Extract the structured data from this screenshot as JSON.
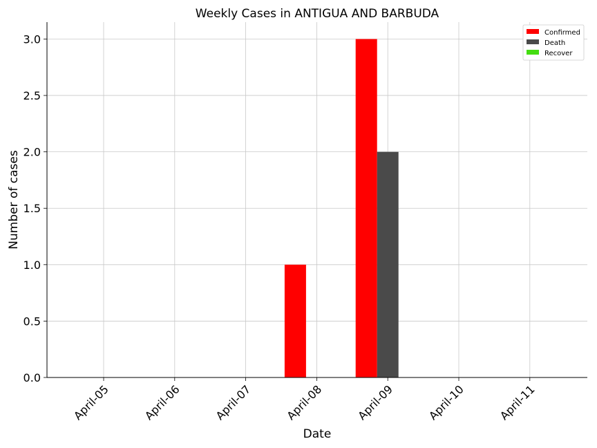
{
  "chart_data": {
    "type": "bar",
    "title": "Weekly Cases in ANTIGUA AND BARBUDA",
    "xlabel": "Date",
    "ylabel": "Number of cases",
    "categories": [
      "April-05",
      "April-06",
      "April-07",
      "April-08",
      "April-09",
      "April-10",
      "April-11"
    ],
    "series": [
      {
        "name": "Confirmed",
        "color": "#ff0000",
        "values": [
          0,
          0,
          0,
          1,
          3,
          0,
          0
        ]
      },
      {
        "name": "Death",
        "color": "#4a4a4a",
        "values": [
          0,
          0,
          0,
          0,
          2,
          0,
          0
        ]
      },
      {
        "name": "Recover",
        "color": "#44dd11",
        "values": [
          0,
          0,
          0,
          0,
          0,
          0,
          0
        ]
      }
    ],
    "ylim": [
      0,
      3.15
    ],
    "yticks": [
      "0.0",
      "0.5",
      "1.0",
      "1.5",
      "2.0",
      "2.5",
      "3.0"
    ],
    "grid": true,
    "legend_position": "top-right"
  }
}
